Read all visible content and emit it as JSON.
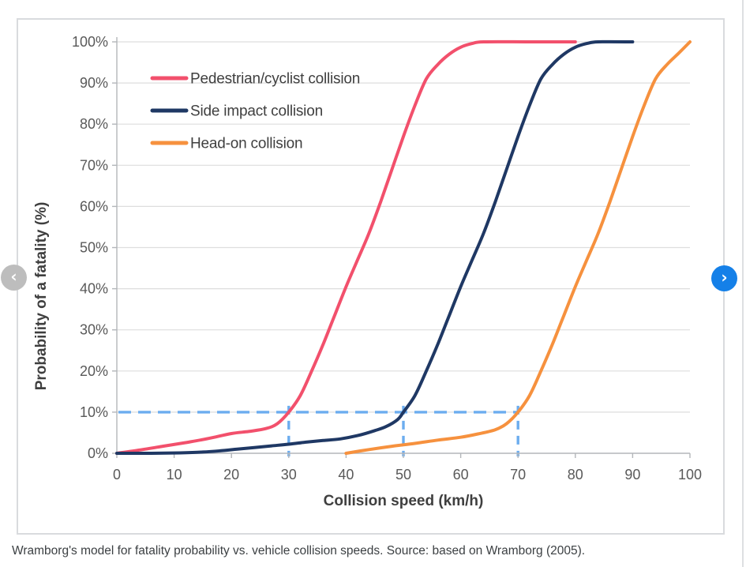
{
  "figure": {
    "caption": "Wramborg's model for fatality probability vs. vehicle collision speeds. Source: based on Wramborg (2005)."
  },
  "carousel": {
    "prev_label": "‹",
    "next_label": "›"
  },
  "chart_data": {
    "type": "line",
    "title": "",
    "xlabel": "Collision speed (km/h)",
    "ylabel": "Probability of a fatality (%)",
    "xlim": [
      0,
      100
    ],
    "ylim": [
      0,
      100
    ],
    "grid": "horizontal",
    "legend_position": "top-left-inside",
    "x_ticks": [
      0,
      10,
      20,
      30,
      40,
      50,
      60,
      70,
      80,
      90,
      100
    ],
    "x_tick_labels": [
      "0",
      "10",
      "20",
      "30",
      "40",
      "50",
      "60",
      "70",
      "80",
      "90",
      "100"
    ],
    "y_ticks": [
      0,
      10,
      20,
      30,
      40,
      50,
      60,
      70,
      80,
      90,
      100
    ],
    "y_tick_labels": [
      "0%",
      "10%",
      "20%",
      "30%",
      "40%",
      "50%",
      "60%",
      "70%",
      "80%",
      "90%",
      "100%"
    ],
    "series": [
      {
        "name": "Pedestrian/cyclist collision",
        "color": "#F2506C",
        "points": [
          [
            0,
            0
          ],
          [
            4,
            0.8
          ],
          [
            8,
            1.7
          ],
          [
            12,
            2.6
          ],
          [
            16,
            3.6
          ],
          [
            20,
            4.8
          ],
          [
            23,
            5.3
          ],
          [
            26,
            6
          ],
          [
            28,
            7.2
          ],
          [
            30,
            10
          ],
          [
            32,
            14
          ],
          [
            34,
            20
          ],
          [
            36,
            26.5
          ],
          [
            38,
            33.5
          ],
          [
            40,
            40.5
          ],
          [
            42,
            47
          ],
          [
            44,
            53.5
          ],
          [
            46,
            61
          ],
          [
            48,
            69
          ],
          [
            50,
            77
          ],
          [
            52,
            84.5
          ],
          [
            54,
            91
          ],
          [
            56,
            94.5
          ],
          [
            58,
            97
          ],
          [
            60,
            98.7
          ],
          [
            62,
            99.6
          ],
          [
            64,
            100
          ],
          [
            72,
            100
          ],
          [
            80,
            100
          ]
        ]
      },
      {
        "name": "Side impact collision",
        "color": "#1F3864",
        "points": [
          [
            0,
            0
          ],
          [
            6,
            0
          ],
          [
            11,
            0.1
          ],
          [
            15,
            0.3
          ],
          [
            18,
            0.6
          ],
          [
            21,
            1
          ],
          [
            24,
            1.4
          ],
          [
            27,
            1.8
          ],
          [
            30,
            2.2
          ],
          [
            33,
            2.7
          ],
          [
            36,
            3.1
          ],
          [
            39,
            3.5
          ],
          [
            42,
            4.3
          ],
          [
            45,
            5.5
          ],
          [
            47,
            6.5
          ],
          [
            49,
            8.2
          ],
          [
            50,
            10
          ],
          [
            52,
            14
          ],
          [
            54,
            20
          ],
          [
            56,
            26.5
          ],
          [
            58,
            33.5
          ],
          [
            60,
            40.5
          ],
          [
            62,
            47
          ],
          [
            64,
            53.5
          ],
          [
            66,
            61
          ],
          [
            68,
            69
          ],
          [
            70,
            77
          ],
          [
            72,
            84.5
          ],
          [
            74,
            91
          ],
          [
            76,
            94.5
          ],
          [
            78,
            97
          ],
          [
            80,
            98.7
          ],
          [
            82,
            99.6
          ],
          [
            84,
            100
          ],
          [
            90,
            100
          ]
        ]
      },
      {
        "name": "Head-on collision",
        "color": "#F6913E",
        "points": [
          [
            40,
            0
          ],
          [
            44,
            0.9
          ],
          [
            48,
            1.7
          ],
          [
            52,
            2.4
          ],
          [
            56,
            3.2
          ],
          [
            60,
            3.9
          ],
          [
            63,
            4.7
          ],
          [
            66,
            5.7
          ],
          [
            68,
            7.2
          ],
          [
            70,
            10
          ],
          [
            72,
            14
          ],
          [
            74,
            20
          ],
          [
            76,
            26.5
          ],
          [
            78,
            33.5
          ],
          [
            80,
            40.5
          ],
          [
            82,
            47
          ],
          [
            84,
            53.5
          ],
          [
            86,
            61
          ],
          [
            88,
            69
          ],
          [
            90,
            77
          ],
          [
            92,
            84.5
          ],
          [
            94,
            91
          ],
          [
            96,
            94.5
          ],
          [
            98,
            97.2
          ],
          [
            100,
            100
          ]
        ]
      }
    ],
    "reference_lines": {
      "color": "#6CADEF",
      "horizontal": {
        "y": 10,
        "x_start": 0,
        "x_end": 70
      },
      "vertical_x": [
        30,
        50,
        70
      ]
    }
  },
  "colors": {
    "grid": "#DEDEDE",
    "axis": "#B3B6BA",
    "tick_text": "#595959",
    "title_text": "#3F3F3F",
    "caption_text": "#3C4043",
    "card_border": "#D9DBDE",
    "prev_button_bg": "#BDBDBD",
    "next_button_bg": "#1580E8",
    "button_icon": "#FFFFFF"
  }
}
